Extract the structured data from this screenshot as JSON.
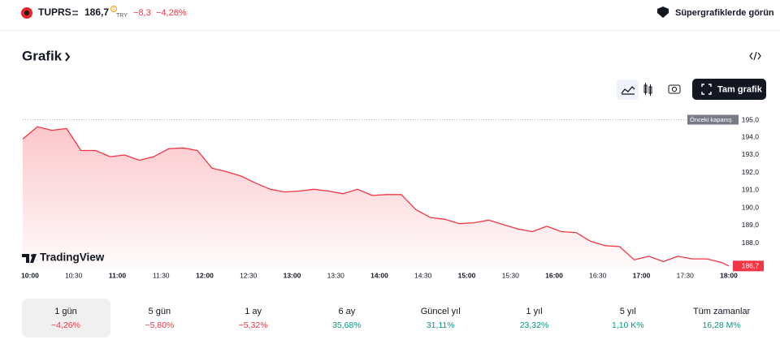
{
  "header": {
    "symbol": "TUPRS",
    "price": "186,7",
    "delay_badge": "D",
    "currency": "TRY",
    "change": "−8,3",
    "change_percent": "−4,26%",
    "supercharts_link": "Süpergrafiklerde görün"
  },
  "section": {
    "title": "Grafik",
    "full_chart_button": "Tam grafik",
    "logo": "TradingView"
  },
  "chart_data": {
    "type": "line",
    "color": "#f23645",
    "x": [
      "09:55",
      "10:05",
      "10:15",
      "10:25",
      "10:35",
      "10:45",
      "10:55",
      "11:05",
      "11:15",
      "11:25",
      "11:35",
      "11:45",
      "11:55",
      "12:05",
      "12:15",
      "12:25",
      "12:35",
      "12:45",
      "12:55",
      "13:05",
      "13:15",
      "13:25",
      "13:35",
      "13:45",
      "13:55",
      "14:05",
      "14:15",
      "14:25",
      "14:35",
      "14:45",
      "14:55",
      "15:05",
      "15:15",
      "15:25",
      "15:35",
      "15:45",
      "15:55",
      "16:05",
      "16:15",
      "16:25",
      "16:35",
      "16:45",
      "16:55",
      "17:05",
      "17:15",
      "17:25",
      "17:35",
      "17:45",
      "17:55",
      "18:00"
    ],
    "values": [
      193.9,
      194.6,
      194.4,
      194.5,
      193.25,
      193.25,
      192.9,
      193.0,
      192.7,
      192.9,
      193.35,
      193.4,
      193.25,
      192.25,
      192.05,
      191.8,
      191.4,
      191.05,
      190.9,
      190.95,
      191.05,
      190.95,
      190.8,
      191.05,
      190.7,
      190.75,
      190.75,
      189.9,
      189.45,
      189.35,
      189.1,
      189.15,
      189.3,
      189.05,
      188.8,
      188.65,
      188.95,
      188.65,
      188.6,
      188.1,
      187.85,
      187.8,
      187.05,
      187.25,
      186.95,
      187.25,
      187.1,
      187.1,
      186.9,
      186.7
    ],
    "last_value_label": "186,7",
    "xlim": [
      "09:55",
      "18:00"
    ],
    "xticks": [
      "10:00",
      "10:30",
      "11:00",
      "11:30",
      "12:00",
      "12:30",
      "13:00",
      "13:30",
      "14:00",
      "14:30",
      "15:00",
      "15:30",
      "16:00",
      "16:30",
      "17:00",
      "17:30",
      "18:00"
    ],
    "ylim": [
      186.6,
      195.3
    ],
    "yticks": [
      {
        "value": 188,
        "label": "188,0"
      },
      {
        "value": 189,
        "label": "189,0"
      },
      {
        "value": 190,
        "label": "190,0"
      },
      {
        "value": 191,
        "label": "191,0"
      },
      {
        "value": 192,
        "label": "192,0"
      },
      {
        "value": 193,
        "label": "193,0"
      },
      {
        "value": 194,
        "label": "194,0"
      }
    ],
    "previous_close": {
      "label": "Önceki kapanış",
      "value": 195,
      "value_label": "195,0"
    }
  },
  "periods": [
    {
      "label": "1 gün",
      "change": "−4,26%"
    },
    {
      "label": "5 gün",
      "change": "−5,80%"
    },
    {
      "label": "1 ay",
      "change": "−5,32%"
    },
    {
      "label": "6 ay",
      "change": "35,68%"
    },
    {
      "label": "Güncel yıl",
      "change": "31,11%"
    },
    {
      "label": "1 yıl",
      "change": "23,32%"
    },
    {
      "label": "5 yıl",
      "change": "1,10 K%"
    },
    {
      "label": "Tüm zamanlar",
      "change": "16,28 M%"
    }
  ]
}
